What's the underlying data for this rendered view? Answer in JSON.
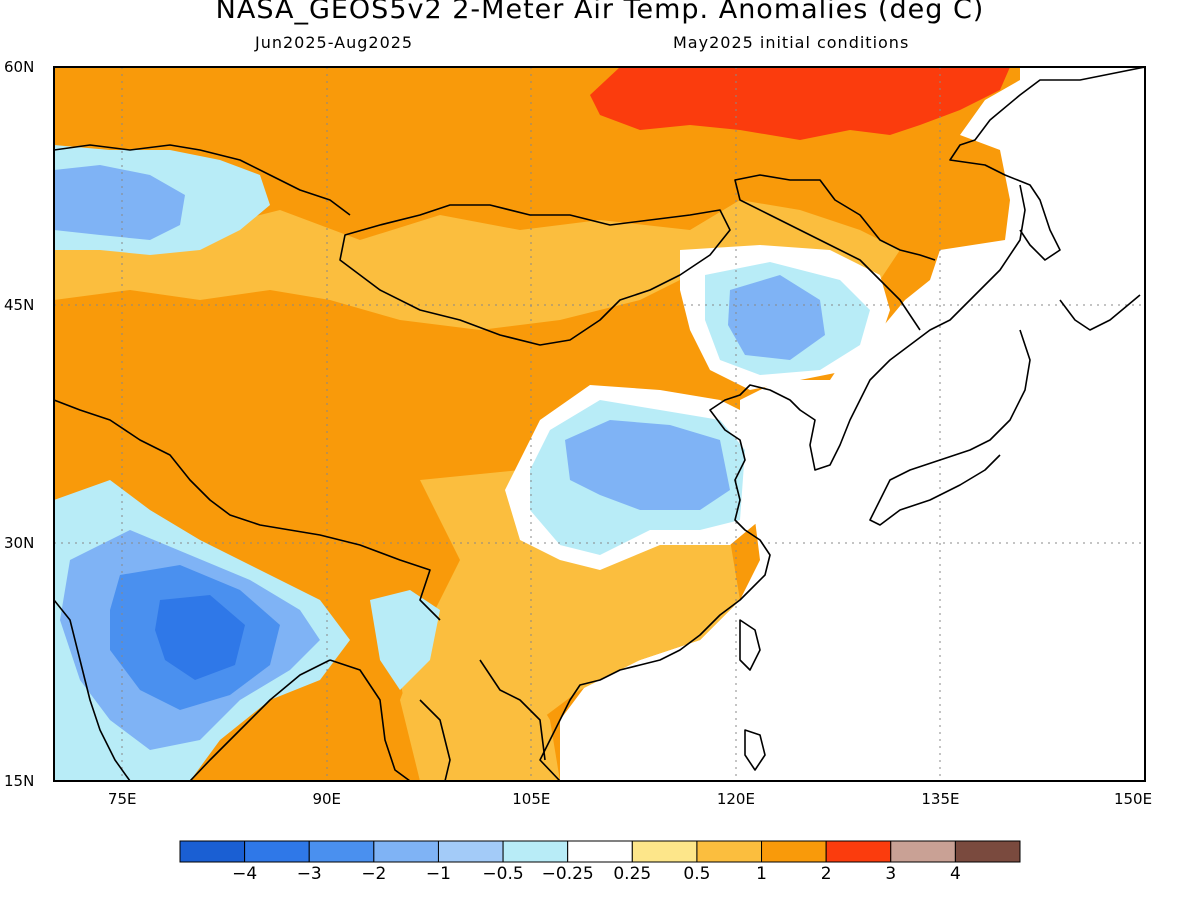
{
  "title": "NASA_GEOS5v2 2-Meter Air Temp. Anomalies (deg C)",
  "subtitle_left": "Jun2025-Aug2025",
  "subtitle_right": "May2025 initial conditions",
  "map": {
    "lon_range": [
      70,
      150
    ],
    "lat_range": [
      15,
      60
    ],
    "lat_labels": [
      "60N",
      "45N",
      "30N",
      "15N"
    ],
    "lon_labels": [
      "75E",
      "90E",
      "105E",
      "120E",
      "135E",
      "150E"
    ],
    "gridlines": "dotted"
  },
  "colorbar": {
    "colors": [
      "#1a5fd3",
      "#2f78e8",
      "#4a90ef",
      "#7fb3f5",
      "#a3cbf8",
      "#b8ecf7",
      "#ffffff",
      "#fde68a",
      "#fbbe3e",
      "#f99a0a",
      "#fb3c0d",
      "#c9a195",
      "#7a4a3e"
    ],
    "labels": [
      "-4",
      "-3",
      "-2",
      "-1",
      "-0.5",
      "-0.25",
      "0.25",
      "0.5",
      "1",
      "2",
      "3",
      "4"
    ]
  },
  "colors": {
    "warm_1": "#fbbe3e",
    "warm_2": "#f99a0a",
    "warm_3": "#fb3c0d",
    "neutral": "#ffffff",
    "cool_1": "#b8ecf7",
    "cool_2": "#7fb3f5",
    "cool_3": "#4a90ef"
  }
}
